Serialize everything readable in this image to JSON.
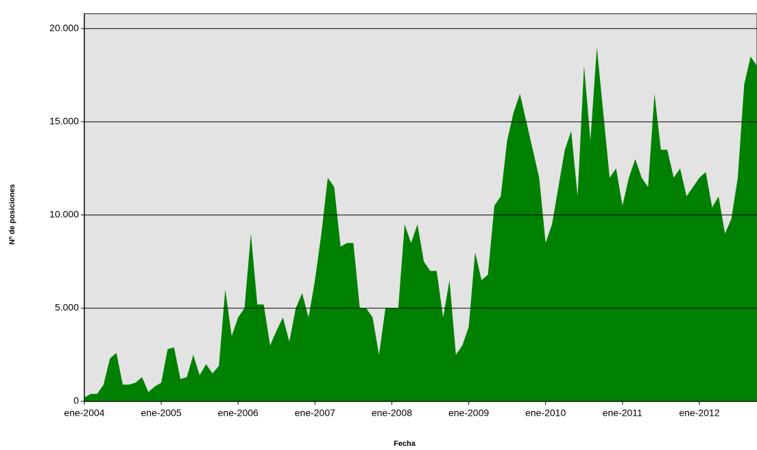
{
  "chart_data": {
    "type": "area",
    "x_title": "Fecha",
    "y_title": "Nº de posiciones",
    "color": "#008000",
    "background": "#e3e3e3",
    "grid": true,
    "x": [
      "2004-01",
      "2004-02",
      "2004-03",
      "2004-04",
      "2004-05",
      "2004-06",
      "2004-07",
      "2004-08",
      "2004-09",
      "2004-10",
      "2004-11",
      "2004-12",
      "2005-01",
      "2005-02",
      "2005-03",
      "2005-04",
      "2005-05",
      "2005-06",
      "2005-07",
      "2005-08",
      "2005-09",
      "2005-10",
      "2005-11",
      "2005-12",
      "2006-01",
      "2006-02",
      "2006-03",
      "2006-04",
      "2006-05",
      "2006-06",
      "2006-07",
      "2006-08",
      "2006-09",
      "2006-10",
      "2006-11",
      "2006-12",
      "2007-01",
      "2007-02",
      "2007-03",
      "2007-04",
      "2007-05",
      "2007-06",
      "2007-07",
      "2007-08",
      "2007-09",
      "2007-10",
      "2007-11",
      "2007-12",
      "2008-01",
      "2008-02",
      "2008-03",
      "2008-04",
      "2008-05",
      "2008-06",
      "2008-07",
      "2008-08",
      "2008-09",
      "2008-10",
      "2008-11",
      "2008-12",
      "2009-01",
      "2009-02",
      "2009-03",
      "2009-04",
      "2009-05",
      "2009-06",
      "2009-07",
      "2009-08",
      "2009-09",
      "2009-10",
      "2009-11",
      "2009-12",
      "2010-01",
      "2010-02",
      "2010-03",
      "2010-04",
      "2010-05",
      "2010-06",
      "2010-07",
      "2010-08",
      "2010-09",
      "2010-10",
      "2010-11",
      "2010-12",
      "2011-01",
      "2011-02",
      "2011-03",
      "2011-04",
      "2011-05",
      "2011-06",
      "2011-07",
      "2011-08",
      "2011-09",
      "2011-10",
      "2011-11",
      "2011-12",
      "2012-01",
      "2012-02",
      "2012-03",
      "2012-04",
      "2012-05",
      "2012-06",
      "2012-07",
      "2012-08",
      "2012-09",
      "2012-10"
    ],
    "values": [
      200,
      400,
      400,
      900,
      2300,
      2600,
      900,
      900,
      1000,
      1300,
      500,
      800,
      1000,
      2800,
      2900,
      1200,
      1300,
      2500,
      1400,
      2000,
      1500,
      1900,
      6000,
      3500,
      4500,
      5000,
      9000,
      5200,
      5200,
      3000,
      3800,
      4500,
      3200,
      5000,
      5800,
      4500,
      6500,
      9000,
      12000,
      11500,
      8300,
      8500,
      8500,
      5000,
      5000,
      4500,
      2500,
      5000,
      5000,
      5000,
      9500,
      8500,
      9500,
      7500,
      7000,
      7000,
      4500,
      6500,
      2500,
      3000,
      4000,
      8000,
      6500,
      6800,
      10500,
      11000,
      14000,
      15500,
      16500,
      15000,
      13500,
      12000,
      8500,
      9500,
      11500,
      13500,
      14500,
      11000,
      18000,
      14000,
      19000,
      15500,
      12000,
      12500,
      10500,
      12000,
      13000,
      12000,
      11500,
      16500,
      13500,
      13500,
      12000,
      12500,
      11000,
      11500,
      12000,
      12300,
      10400,
      11000,
      9000,
      9800,
      12000,
      17000,
      18500,
      18000
    ],
    "xlim": [
      "2004-01",
      "2012-10"
    ],
    "xticks": [
      {
        "value": "2004-01",
        "label": "ene-2004"
      },
      {
        "value": "2005-01",
        "label": "ene-2005"
      },
      {
        "value": "2006-01",
        "label": "ene-2006"
      },
      {
        "value": "2007-01",
        "label": "ene-2007"
      },
      {
        "value": "2008-01",
        "label": "ene-2008"
      },
      {
        "value": "2009-01",
        "label": "ene-2009"
      },
      {
        "value": "2010-01",
        "label": "ene-2010"
      },
      {
        "value": "2011-01",
        "label": "ene-2011"
      },
      {
        "value": "2012-01",
        "label": "ene-2012"
      }
    ],
    "ylim": [
      0,
      20800
    ],
    "yticks": [
      0,
      {
        "value": 5000,
        "label": "5.000"
      },
      {
        "value": 10000,
        "label": "10.000"
      },
      {
        "value": 15000,
        "label": "15.000"
      },
      {
        "value": 20000,
        "label": "20.000"
      }
    ]
  }
}
